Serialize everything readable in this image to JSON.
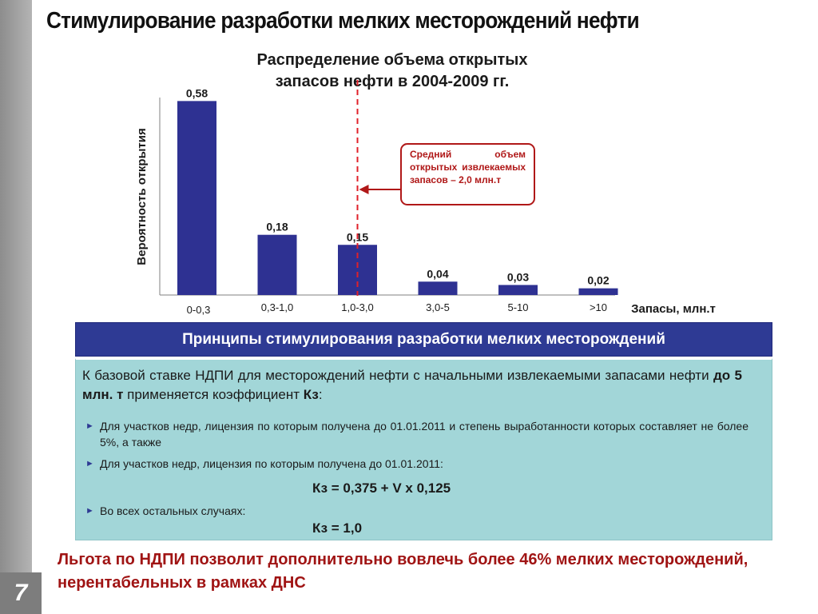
{
  "slide": {
    "title": "Стимулирование разработки мелких месторождений нефти",
    "page_number": "7"
  },
  "chart_data": {
    "type": "bar",
    "title_lines": [
      "Распределение объема открытых",
      "запасов нефти в 2004-2009 гг."
    ],
    "ylabel": "Вероятность открытия",
    "xlabel": "Запасы, млн.т",
    "categories": [
      "0-0,3",
      "0,3-1,0",
      "1,0-3,0",
      "3,0-5",
      "5-10",
      ">10"
    ],
    "values": [
      0.58,
      0.18,
      0.15,
      0.04,
      0.03,
      0.02
    ],
    "value_labels": [
      "0,58",
      "0,18",
      "0,15",
      "0,04",
      "0,03",
      "0,02"
    ],
    "ylim": [
      0,
      0.6
    ],
    "bar_color": "#2e3192",
    "reference_line": {
      "category_index": 2,
      "color": "#e0202a",
      "style": "dashed"
    },
    "annotation": "Средний объем открытых извлекаемых запасов – 2,0 млн.т",
    "grid": false,
    "legend": "none"
  },
  "principles": {
    "header": "Принципы стимулирования разработки мелких месторождений",
    "intro_part1": "К базовой ставке НДПИ для месторождений нефти с начальными извлекаемыми запасами нефти ",
    "intro_bold1": "до 5 млн. т",
    "intro_part2": " применяется коэффициент ",
    "intro_bold2": "Кз",
    "intro_part3": ":",
    "bullets": [
      "Для участков недр, лицензия по которым получена до 01.01.2011 и степень выработанности которых составляет не более 5%, а также",
      "Для участков недр, лицензия по которым получена до 01.01.2011:",
      "Во всех остальных случаях:"
    ],
    "formula_1": "Кз = 0,375 + V x 0,125",
    "formula_2": "Кз = 1,0",
    "bullet_color": "#2e3a94",
    "header_color": "#2e3a94",
    "box_color": "#a2d6d8"
  },
  "conclusion": "Льгота по НДПИ позволит дополнительно вовлечь более 46% мелких месторождений, нерентабельных в рамках ДНС"
}
